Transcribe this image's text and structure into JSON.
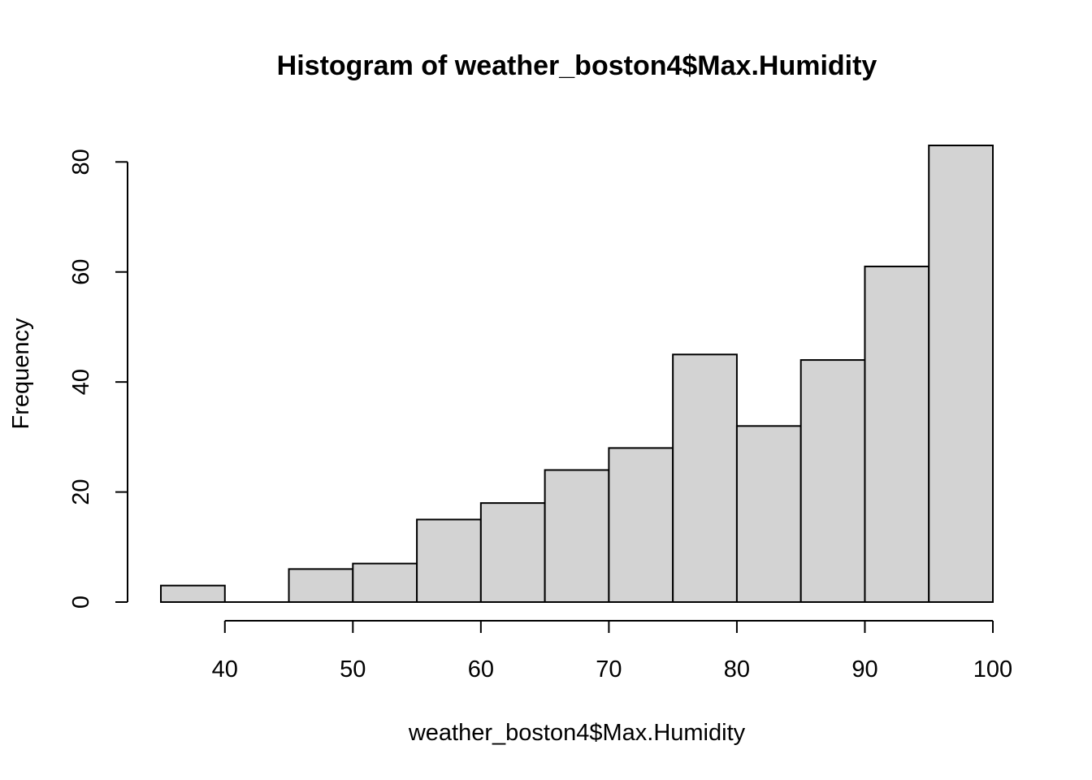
{
  "chart_data": {
    "type": "bar",
    "title": "Histogram of weather_boston4$Max.Humidity",
    "xlabel": "weather_boston4$Max.Humidity",
    "ylabel": "Frequency",
    "bins": [
      {
        "from": 35,
        "to": 40,
        "count": 3
      },
      {
        "from": 40,
        "to": 45,
        "count": 0
      },
      {
        "from": 45,
        "to": 50,
        "count": 6
      },
      {
        "from": 50,
        "to": 55,
        "count": 7
      },
      {
        "from": 55,
        "to": 60,
        "count": 15
      },
      {
        "from": 60,
        "to": 65,
        "count": 18
      },
      {
        "from": 65,
        "to": 70,
        "count": 24
      },
      {
        "from": 70,
        "to": 75,
        "count": 28
      },
      {
        "from": 75,
        "to": 80,
        "count": 45
      },
      {
        "from": 80,
        "to": 85,
        "count": 32
      },
      {
        "from": 85,
        "to": 90,
        "count": 44
      },
      {
        "from": 90,
        "to": 95,
        "count": 61
      },
      {
        "from": 95,
        "to": 100,
        "count": 83
      }
    ],
    "xticks": [
      40,
      50,
      60,
      70,
      80,
      90,
      100
    ],
    "yticks": [
      0,
      20,
      40,
      60,
      80
    ],
    "xlim": [
      35,
      100
    ],
    "ylim": [
      0,
      83
    ],
    "grid": false,
    "bar_color": "#d3d3d3",
    "edge_color": "#000000"
  }
}
